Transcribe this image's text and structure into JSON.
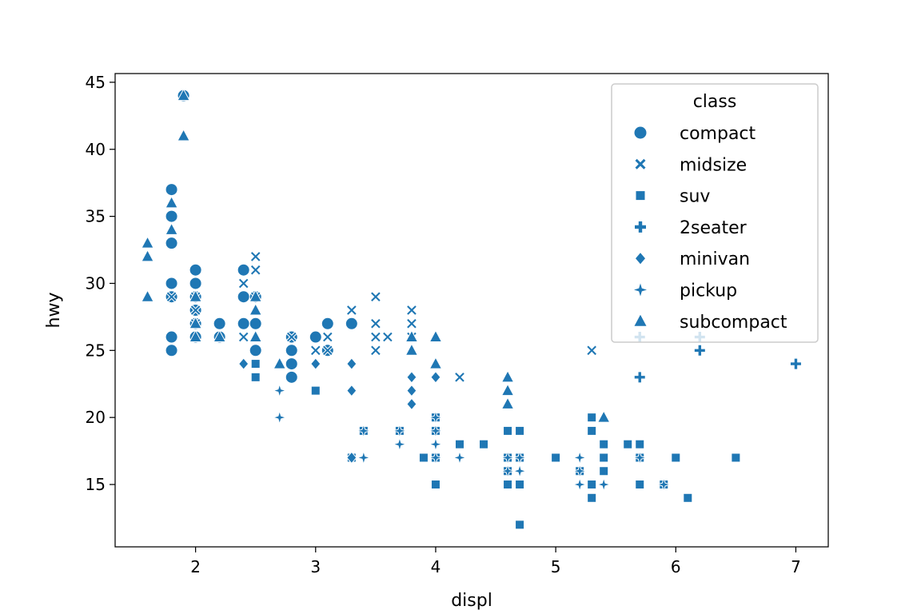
{
  "chart_data": {
    "type": "scatter",
    "title": "",
    "xlabel": "displ",
    "ylabel": "hwy",
    "xlim": [
      1.33,
      7.27
    ],
    "ylim": [
      10.35,
      45.65
    ],
    "xticks": [
      2,
      3,
      4,
      5,
      6,
      7
    ],
    "yticks": [
      15,
      20,
      25,
      30,
      35,
      40,
      45
    ],
    "grid": false,
    "color": "#1f77b4",
    "legend": {
      "title": "class",
      "placement": "top-right",
      "entries": [
        {
          "label": "compact",
          "marker": "circle"
        },
        {
          "label": "midsize",
          "marker": "x"
        },
        {
          "label": "suv",
          "marker": "square"
        },
        {
          "label": "2seater",
          "marker": "plus"
        },
        {
          "label": "minivan",
          "marker": "diamond"
        },
        {
          "label": "pickup",
          "marker": "star"
        },
        {
          "label": "subcompact",
          "marker": "triangle"
        }
      ]
    },
    "series": [
      {
        "name": "compact",
        "marker": "circle",
        "points": [
          [
            1.8,
            29
          ],
          [
            1.8,
            29
          ],
          [
            2.0,
            31
          ],
          [
            2.0,
            30
          ],
          [
            2.8,
            26
          ],
          [
            2.8,
            26
          ],
          [
            3.1,
            27
          ],
          [
            1.8,
            26
          ],
          [
            1.8,
            25
          ],
          [
            2.0,
            28
          ],
          [
            2.0,
            27
          ],
          [
            2.8,
            25
          ],
          [
            2.8,
            25
          ],
          [
            3.1,
            25
          ],
          [
            2.5,
            27
          ],
          [
            2.5,
            25
          ],
          [
            2.2,
            26
          ],
          [
            2.2,
            27
          ],
          [
            2.4,
            31
          ],
          [
            2.4,
            31
          ],
          [
            3.0,
            26
          ],
          [
            3.0,
            26
          ],
          [
            3.3,
            27
          ],
          [
            1.8,
            35
          ],
          [
            1.8,
            37
          ],
          [
            1.9,
            44
          ],
          [
            2.0,
            29
          ],
          [
            2.0,
            26
          ],
          [
            2.8,
            24
          ],
          [
            2.8,
            23
          ],
          [
            1.8,
            29
          ],
          [
            1.8,
            33
          ],
          [
            1.8,
            30
          ],
          [
            2.0,
            30
          ],
          [
            2.4,
            29
          ],
          [
            2.5,
            29
          ],
          [
            2.8,
            24
          ],
          [
            2.4,
            27
          ],
          [
            2.5,
            27
          ]
        ]
      },
      {
        "name": "midsize",
        "marker": "x",
        "points": [
          [
            2.8,
            26
          ],
          [
            3.1,
            25
          ],
          [
            4.2,
            23
          ],
          [
            2.4,
            26
          ],
          [
            2.4,
            30
          ],
          [
            3.1,
            26
          ],
          [
            3.5,
            29
          ],
          [
            3.6,
            26
          ],
          [
            3.3,
            28
          ],
          [
            3.8,
            26
          ],
          [
            3.8,
            28
          ],
          [
            3.5,
            27
          ],
          [
            2.0,
            28
          ],
          [
            2.0,
            29
          ],
          [
            2.5,
            31
          ],
          [
            2.5,
            32
          ],
          [
            3.5,
            26
          ],
          [
            3.5,
            25
          ],
          [
            2.4,
            26
          ],
          [
            3.0,
            25
          ],
          [
            3.8,
            27
          ],
          [
            5.3,
            25
          ],
          [
            2.0,
            29
          ],
          [
            2.0,
            28
          ],
          [
            1.8,
            29
          ],
          [
            2.0,
            27
          ],
          [
            2.8,
            26
          ],
          [
            2.5,
            29
          ]
        ]
      },
      {
        "name": "suv",
        "marker": "square",
        "points": [
          [
            5.3,
            20
          ],
          [
            5.3,
            15
          ],
          [
            5.7,
            15
          ],
          [
            6.5,
            17
          ],
          [
            4.0,
            17
          ],
          [
            4.0,
            15
          ],
          [
            4.6,
            17
          ],
          [
            5.0,
            17
          ],
          [
            4.6,
            19
          ],
          [
            5.4,
            17
          ],
          [
            4.7,
            19
          ],
          [
            4.7,
            15
          ],
          [
            4.7,
            15
          ],
          [
            5.7,
            17
          ],
          [
            6.1,
            14
          ],
          [
            4.0,
            20
          ],
          [
            4.2,
            18
          ],
          [
            4.6,
            15
          ],
          [
            4.6,
            17
          ],
          [
            5.4,
            16
          ],
          [
            5.4,
            18
          ],
          [
            5.4,
            17
          ],
          [
            3.0,
            22
          ],
          [
            3.7,
            19
          ],
          [
            4.0,
            19
          ],
          [
            4.7,
            15
          ],
          [
            4.7,
            12
          ],
          [
            5.7,
            15
          ],
          [
            5.7,
            18
          ],
          [
            6.1,
            14
          ],
          [
            4.0,
            19
          ],
          [
            4.4,
            18
          ],
          [
            4.6,
            16
          ],
          [
            5.4,
            17
          ],
          [
            2.5,
            23
          ],
          [
            2.5,
            24
          ],
          [
            3.3,
            17
          ],
          [
            3.9,
            17
          ],
          [
            4.7,
            17
          ],
          [
            5.3,
            15
          ],
          [
            5.3,
            14
          ],
          [
            5.6,
            18
          ],
          [
            5.9,
            15
          ],
          [
            6.0,
            17
          ],
          [
            4.0,
            17
          ],
          [
            3.4,
            19
          ],
          [
            3.3,
            17
          ],
          [
            5.3,
            19
          ],
          [
            5.7,
            18
          ],
          [
            5.2,
            16
          ]
        ]
      },
      {
        "name": "2seater",
        "marker": "plus",
        "points": [
          [
            5.7,
            26
          ],
          [
            5.7,
            23
          ],
          [
            6.2,
            26
          ],
          [
            6.2,
            25
          ],
          [
            7.0,
            24
          ]
        ]
      },
      {
        "name": "minivan",
        "marker": "diamond",
        "points": [
          [
            2.4,
            24
          ],
          [
            3.0,
            24
          ],
          [
            3.3,
            22
          ],
          [
            3.3,
            24
          ],
          [
            3.8,
            21
          ],
          [
            3.8,
            22
          ],
          [
            3.8,
            23
          ],
          [
            4.0,
            23
          ],
          [
            3.3,
            17
          ],
          [
            3.3,
            24
          ],
          [
            3.8,
            23
          ]
        ]
      },
      {
        "name": "pickup",
        "marker": "star",
        "points": [
          [
            2.7,
            20
          ],
          [
            2.7,
            22
          ],
          [
            3.4,
            17
          ],
          [
            3.4,
            19
          ],
          [
            4.0,
            17
          ],
          [
            4.7,
            17
          ],
          [
            4.7,
            16
          ],
          [
            4.7,
            17
          ],
          [
            5.2,
            17
          ],
          [
            5.2,
            15
          ],
          [
            5.7,
            17
          ],
          [
            5.9,
            15
          ],
          [
            3.7,
            18
          ],
          [
            3.7,
            19
          ],
          [
            4.7,
            16
          ],
          [
            5.2,
            16
          ],
          [
            4.0,
            18
          ],
          [
            4.0,
            20
          ],
          [
            4.6,
            17
          ],
          [
            5.4,
            15
          ],
          [
            2.7,
            20
          ],
          [
            4.2,
            17
          ],
          [
            4.6,
            16
          ],
          [
            4.0,
            19
          ]
        ]
      },
      {
        "name": "subcompact",
        "marker": "triangle",
        "points": [
          [
            1.6,
            33
          ],
          [
            1.6,
            32
          ],
          [
            1.6,
            29
          ],
          [
            1.8,
            34
          ],
          [
            1.8,
            36
          ],
          [
            1.9,
            44
          ],
          [
            1.9,
            41
          ],
          [
            2.0,
            26
          ],
          [
            2.0,
            29
          ],
          [
            2.0,
            27
          ],
          [
            2.2,
            26
          ],
          [
            2.5,
            26
          ],
          [
            2.5,
            28
          ],
          [
            2.7,
            24
          ],
          [
            3.8,
            26
          ],
          [
            3.8,
            25
          ],
          [
            4.0,
            26
          ],
          [
            4.0,
            24
          ],
          [
            4.6,
            23
          ],
          [
            4.6,
            22
          ],
          [
            4.6,
            21
          ],
          [
            5.4,
            20
          ],
          [
            2.5,
            29
          ],
          [
            2.0,
            27
          ]
        ]
      }
    ]
  }
}
